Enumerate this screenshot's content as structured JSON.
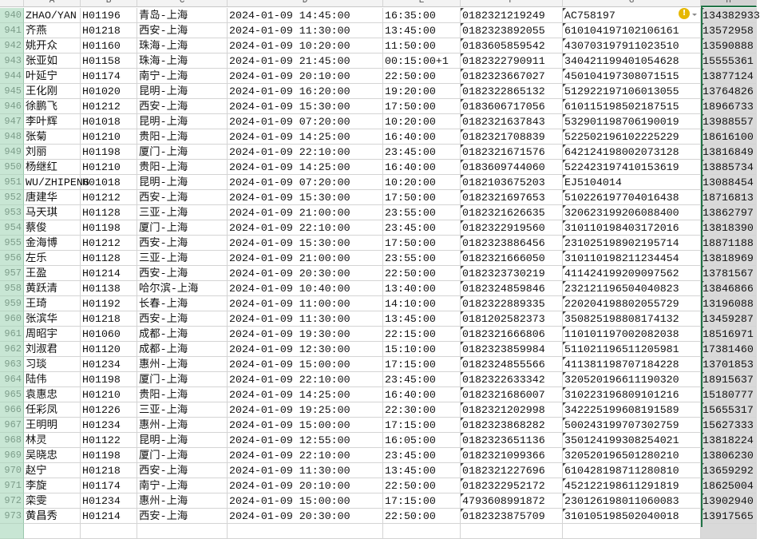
{
  "columns": [
    "A",
    "B",
    "C",
    "D",
    "E",
    "F",
    "G",
    "H"
  ],
  "selected_column": "H",
  "warning_icon": "warning-icon",
  "rows": [
    {
      "n": "940",
      "a": "ZHAO/YAN",
      "b": "H01196",
      "c": "青岛-上海",
      "d": "2024-01-09 14:45:00",
      "e": "16:35:00",
      "f": "0182321219249",
      "g": "AC758197",
      "h": "134382933"
    },
    {
      "n": "941",
      "a": "齐燕",
      "b": "H01218",
      "c": "西安-上海",
      "d": "2024-01-09 11:30:00",
      "e": "13:45:00",
      "f": "0182323892055",
      "g": "610104197102106161",
      "h": "13572958"
    },
    {
      "n": "942",
      "a": "姚开众",
      "b": "H01160",
      "c": "珠海-上海",
      "d": "2024-01-09 10:20:00",
      "e": "11:50:00",
      "f": "0183605859542",
      "g": "430703197911023510",
      "h": "13590888"
    },
    {
      "n": "943",
      "a": "张亚如",
      "b": "H01158",
      "c": "珠海-上海",
      "d": "2024-01-09 21:45:00",
      "e": "00:15:00+1",
      "f": "0182322790911",
      "g": "340421199401054628",
      "h": "15555361"
    },
    {
      "n": "944",
      "a": "叶延宁",
      "b": "H01174",
      "c": "南宁-上海",
      "d": "2024-01-09 20:10:00",
      "e": "22:50:00",
      "f": "0182323667027",
      "g": "450104197308071515",
      "h": "13877124"
    },
    {
      "n": "945",
      "a": "王化刚",
      "b": "H01020",
      "c": "昆明-上海",
      "d": "2024-01-09 16:20:00",
      "e": "19:20:00",
      "f": "0182322865132",
      "g": "512922197106013055",
      "h": "13764826"
    },
    {
      "n": "946",
      "a": "徐鹏飞",
      "b": "H01212",
      "c": "西安-上海",
      "d": "2024-01-09 15:30:00",
      "e": "17:50:00",
      "f": "0183606717056",
      "g": "610115198502187515",
      "h": "18966733"
    },
    {
      "n": "947",
      "a": "李叶辉",
      "b": "H01018",
      "c": "昆明-上海",
      "d": "2024-01-09 07:20:00",
      "e": "10:20:00",
      "f": "0182321637843",
      "g": "532901198706190019",
      "h": "13988557"
    },
    {
      "n": "948",
      "a": "张菊",
      "b": "H01210",
      "c": "贵阳-上海",
      "d": "2024-01-09 14:25:00",
      "e": "16:40:00",
      "f": "0182321708839",
      "g": "522502196102225229",
      "h": "18616100"
    },
    {
      "n": "949",
      "a": "刘丽",
      "b": "H01198",
      "c": "厦门-上海",
      "d": "2024-01-09 22:10:00",
      "e": "23:45:00",
      "f": "0182321671576",
      "g": "642124198002073128",
      "h": "13816849"
    },
    {
      "n": "950",
      "a": "杨继红",
      "b": "H01210",
      "c": "贵阳-上海",
      "d": "2024-01-09 14:25:00",
      "e": "16:40:00",
      "f": "0183609744060",
      "g": "522423197410153619",
      "h": "13885734"
    },
    {
      "n": "951",
      "a": "WU/ZHIPENG",
      "b": "H01018",
      "c": "昆明-上海",
      "d": "2024-01-09 07:20:00",
      "e": "10:20:00",
      "f": "0182103675203",
      "g": "EJ5104014",
      "h": "13088454"
    },
    {
      "n": "952",
      "a": "唐建华",
      "b": "H01212",
      "c": "西安-上海",
      "d": "2024-01-09 15:30:00",
      "e": "17:50:00",
      "f": "0182321697653",
      "g": "510226197704016438",
      "h": "18716813"
    },
    {
      "n": "953",
      "a": "马天琪",
      "b": "H01128",
      "c": "三亚-上海",
      "d": "2024-01-09 21:00:00",
      "e": "23:55:00",
      "f": "0182321626635",
      "g": "320623199206088400",
      "h": "13862797"
    },
    {
      "n": "954",
      "a": "蔡俊",
      "b": "H01198",
      "c": "厦门-上海",
      "d": "2024-01-09 22:10:00",
      "e": "23:45:00",
      "f": "0182322919560",
      "g": "310110198403172016",
      "h": "13818390"
    },
    {
      "n": "955",
      "a": "金海博",
      "b": "H01212",
      "c": "西安-上海",
      "d": "2024-01-09 15:30:00",
      "e": "17:50:00",
      "f": "0182323886456",
      "g": "231025198902195714",
      "h": "18871188"
    },
    {
      "n": "956",
      "a": "左乐",
      "b": "H01128",
      "c": "三亚-上海",
      "d": "2024-01-09 21:00:00",
      "e": "23:55:00",
      "f": "0182321666050",
      "g": "310110198211234454",
      "h": "13818969"
    },
    {
      "n": "957",
      "a": "王盈",
      "b": "H01214",
      "c": "西安-上海",
      "d": "2024-01-09 20:30:00",
      "e": "22:50:00",
      "f": "0182323730219",
      "g": "411424199209097562",
      "h": "13781567"
    },
    {
      "n": "958",
      "a": "黄跃清",
      "b": "H01138",
      "c": "哈尔滨-上海",
      "d": "2024-01-09 10:40:00",
      "e": "13:40:00",
      "f": "0182324859846",
      "g": "232121196504040823",
      "h": "13846866"
    },
    {
      "n": "959",
      "a": "王琦",
      "b": "H01192",
      "c": "长春-上海",
      "d": "2024-01-09 11:00:00",
      "e": "14:10:00",
      "f": "0182322889335",
      "g": "220204198802055729",
      "h": "13196088"
    },
    {
      "n": "960",
      "a": "张滨华",
      "b": "H01218",
      "c": "西安-上海",
      "d": "2024-01-09 11:30:00",
      "e": "13:45:00",
      "f": "0181202582373",
      "g": "350825198808174132",
      "h": "13459287"
    },
    {
      "n": "961",
      "a": "周昭宇",
      "b": "H01060",
      "c": "成都-上海",
      "d": "2024-01-09 19:30:00",
      "e": "22:15:00",
      "f": "0182321666806",
      "g": "110101197002082038",
      "h": "18516971"
    },
    {
      "n": "962",
      "a": "刘淑君",
      "b": "H01120",
      "c": "成都-上海",
      "d": "2024-01-09 12:30:00",
      "e": "15:10:00",
      "f": "0182323859984",
      "g": "511021196511205981",
      "h": "17381460"
    },
    {
      "n": "963",
      "a": "习琰",
      "b": "H01234",
      "c": "惠州-上海",
      "d": "2024-01-09 15:00:00",
      "e": "17:15:00",
      "f": "0182324855566",
      "g": "411381198707184228",
      "h": "13701853"
    },
    {
      "n": "964",
      "a": "陆伟",
      "b": "H01198",
      "c": "厦门-上海",
      "d": "2024-01-09 22:10:00",
      "e": "23:45:00",
      "f": "0182322633342",
      "g": "320520196611190320",
      "h": "18915637"
    },
    {
      "n": "965",
      "a": "袁惠忠",
      "b": "H01210",
      "c": "贵阳-上海",
      "d": "2024-01-09 14:25:00",
      "e": "16:40:00",
      "f": "0182321686007",
      "g": "310223196809101216",
      "h": "15180777"
    },
    {
      "n": "966",
      "a": "任彩凤",
      "b": "H01226",
      "c": "三亚-上海",
      "d": "2024-01-09 19:25:00",
      "e": "22:30:00",
      "f": "0182321202998",
      "g": "342225199608191589",
      "h": "15655317"
    },
    {
      "n": "967",
      "a": "王明明",
      "b": "H01234",
      "c": "惠州-上海",
      "d": "2024-01-09 15:00:00",
      "e": "17:15:00",
      "f": "0182323868282",
      "g": "500243199707302759",
      "h": "15627333"
    },
    {
      "n": "968",
      "a": "林灵",
      "b": "H01122",
      "c": "昆明-上海",
      "d": "2024-01-09 12:55:00",
      "e": "16:05:00",
      "f": "0182323651136",
      "g": "350124199308254021",
      "h": "13818224"
    },
    {
      "n": "969",
      "a": "吴晓忠",
      "b": "H01198",
      "c": "厦门-上海",
      "d": "2024-01-09 22:10:00",
      "e": "23:45:00",
      "f": "0182321099366",
      "g": "320520196501280210",
      "h": "13806230"
    },
    {
      "n": "970",
      "a": "赵宁",
      "b": "H01218",
      "c": "西安-上海",
      "d": "2024-01-09 11:30:00",
      "e": "13:45:00",
      "f": "0182321227696",
      "g": "610428198711280810",
      "h": "13659292"
    },
    {
      "n": "971",
      "a": "李旋",
      "b": "H01174",
      "c": "南宁-上海",
      "d": "2024-01-09 20:10:00",
      "e": "22:50:00",
      "f": "0182322952172",
      "g": "452122198611291819",
      "h": "18625004"
    },
    {
      "n": "972",
      "a": "栾雯",
      "b": "H01234",
      "c": "惠州-上海",
      "d": "2024-01-09 15:00:00",
      "e": "17:15:00",
      "f": "4793608991872",
      "g": "230126198011060083",
      "h": "13902940"
    },
    {
      "n": "973",
      "a": "黄昌秀",
      "b": "H01214",
      "c": "西安-上海",
      "d": "2024-01-09 20:30:00",
      "e": "22:50:00",
      "f": "0182323875709",
      "g": "310105198502040018",
      "h": "13917565"
    }
  ]
}
